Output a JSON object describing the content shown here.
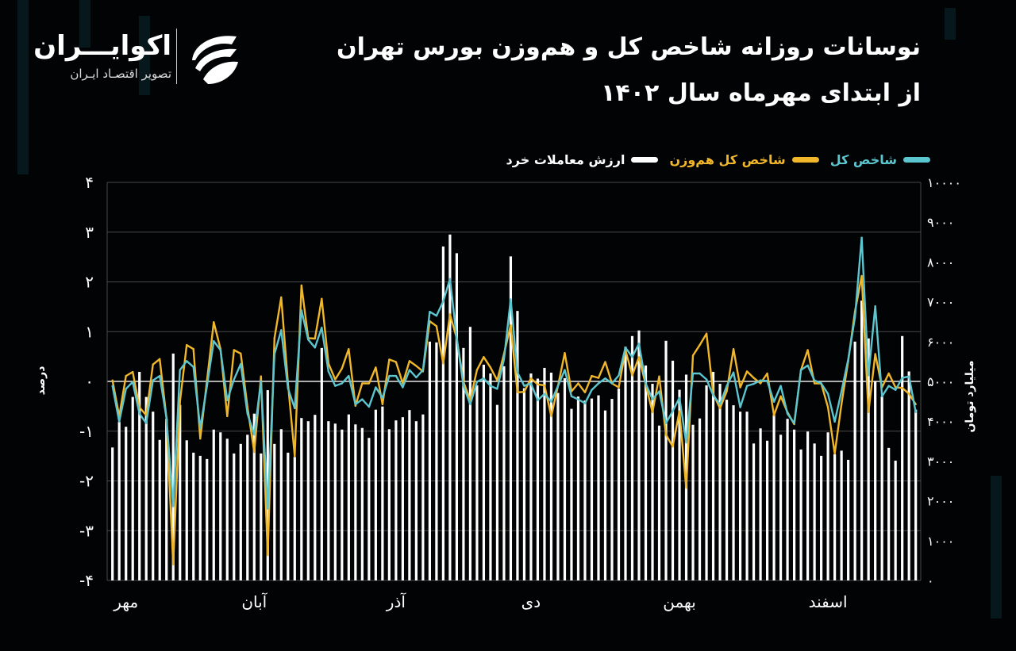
{
  "header": {
    "title_line1": "نوسانات روزانه شاخص کل و هم‌وزن بورس تهران",
    "title_line2": "از ابتدای مهرماه سال ۱۴۰۲"
  },
  "logo": {
    "name": "اکوایـــران",
    "tagline": "تصویر اقتصـاد ایـران",
    "icon": "ekoiran-swoosh-icon"
  },
  "colors": {
    "background": "#020304",
    "total_index": "#5cc6d0",
    "equal_weight_index": "#f0b72a",
    "retail_value": "#ffffff",
    "grid": "#4a4a4a"
  },
  "chart_data": {
    "type": "bar+line",
    "title": "نوسانات روزانه شاخص کل و هم‌وزن بورس تهران از ابتدای مهرماه سال ۱۴۰۲",
    "legend": {
      "placement": "top-right",
      "items": [
        {
          "label": "شاخص کل",
          "series": "total_index"
        },
        {
          "label": "شاخص کل هم‌وزن",
          "series": "equal_weight_index"
        },
        {
          "label": "ارزش معاملات خرد",
          "series": "retail_value"
        }
      ]
    },
    "y_left": {
      "label": "درصد",
      "range": [
        -4,
        4
      ],
      "ticks": [
        "۴",
        "۳",
        "۲",
        "۱",
        "۰",
        "-۱",
        "-۲",
        "-۳",
        "-۴"
      ],
      "tick_values": [
        4,
        3,
        2,
        1,
        0,
        -1,
        -2,
        -3,
        -4
      ]
    },
    "y_right": {
      "label": "میلیارد تومان",
      "range": [
        0,
        10000
      ],
      "ticks": [
        "۱۰۰۰۰",
        "۹۰۰۰",
        "۸۰۰۰",
        "۷۰۰۰",
        "۶۰۰۰",
        "۵۰۰۰",
        "۴۰۰۰",
        "۳۰۰۰",
        "۲۰۰۰",
        "۱۰۰۰",
        "۰"
      ],
      "tick_values": [
        10000,
        9000,
        8000,
        7000,
        6000,
        5000,
        4000,
        3000,
        2000,
        1000,
        0
      ]
    },
    "grid": true,
    "x_ticks": [
      {
        "label": "مهر",
        "index": 3
      },
      {
        "label": "آبان",
        "index": 22
      },
      {
        "label": "آذر",
        "index": 43
      },
      {
        "label": "دی",
        "index": 63
      },
      {
        "label": "بهمن",
        "index": 85
      },
      {
        "label": "اسفند",
        "index": 107
      }
    ],
    "series": [
      {
        "name": "ارزش معاملات خرد",
        "key": "retail_value",
        "type": "bar",
        "axis": "right",
        "values": [
          3340,
          3990,
          3860,
          4610,
          5240,
          4610,
          4240,
          3530,
          4060,
          5700,
          4410,
          3520,
          3210,
          3130,
          3050,
          3790,
          3720,
          3560,
          3190,
          3430,
          3660,
          4190,
          3190,
          4780,
          3430,
          3800,
          3210,
          3100,
          4080,
          4000,
          4160,
          5840,
          4000,
          3940,
          3790,
          4170,
          3920,
          3830,
          3580,
          4290,
          4370,
          3800,
          4020,
          4100,
          4280,
          4000,
          4170,
          6000,
          5980,
          8390,
          8690,
          8220,
          5840,
          6370,
          4900,
          5420,
          5200,
          4410,
          5380,
          8140,
          6770,
          4830,
          5200,
          5070,
          5340,
          5220,
          4710,
          5080,
          4310,
          4620,
          4520,
          4570,
          4650,
          4270,
          4560,
          4820,
          5870,
          6140,
          6280,
          5400,
          4940,
          3890,
          6020,
          5520,
          4790,
          5170,
          3910,
          4070,
          4900,
          5240,
          4940,
          4540,
          4400,
          4240,
          4240,
          3440,
          3820,
          3510,
          4160,
          3660,
          4060,
          3790,
          3290,
          3740,
          3440,
          3130,
          3720,
          3170,
          3260,
          3030,
          6000,
          7030,
          6080,
          5000,
          4620,
          3330,
          3010,
          6140,
          5250,
          4290
        ]
      },
      {
        "name": "شاخص کل هم‌وزن",
        "key": "equal_weight_index",
        "type": "line",
        "axis": "left",
        "values": [
          0.02,
          -0.7,
          0.11,
          0.19,
          -0.52,
          -0.68,
          0.34,
          0.45,
          -0.73,
          -3.68,
          -0.41,
          0.73,
          0.65,
          -1.15,
          0.02,
          1.19,
          0.65,
          -0.7,
          0.63,
          0.56,
          -0.52,
          -1.42,
          0.1,
          -3.49,
          0.87,
          1.69,
          -0.04,
          -1.5,
          1.93,
          0.87,
          0.86,
          1.66,
          0.36,
          0.04,
          0.26,
          0.65,
          -0.49,
          -0.04,
          -0.04,
          0.28,
          -0.46,
          0.44,
          0.39,
          -0.04,
          0.41,
          0.31,
          0.2,
          1.21,
          1.11,
          0.36,
          1.35,
          0.87,
          -0.01,
          -0.38,
          0.23,
          0.49,
          0.28,
          0.02,
          0.55,
          1.13,
          -0.22,
          -0.21,
          0.06,
          -0.06,
          -0.08,
          -0.7,
          -0.09,
          0.57,
          -0.2,
          -0.04,
          -0.22,
          0.11,
          0.07,
          0.39,
          -0.04,
          -0.12,
          0.63,
          0.12,
          0.49,
          -0.06,
          -0.62,
          0.1,
          -1.07,
          -1.31,
          -0.6,
          -2.14,
          0.52,
          0.73,
          0.96,
          -0.25,
          -0.54,
          -0.2,
          0.65,
          -0.12,
          0.2,
          0.07,
          -0.04,
          0.16,
          -0.68,
          -0.3,
          -0.62,
          -0.86,
          0.23,
          0.63,
          -0.04,
          -0.04,
          -0.52,
          -1.45,
          -0.46,
          0.41,
          1.4,
          2.12,
          -0.62,
          0.55,
          -0.12,
          0.16,
          -0.12,
          -0.13,
          -0.25,
          -0.46
        ]
      },
      {
        "name": "شاخص کل",
        "key": "total_index",
        "type": "line",
        "axis": "left",
        "values": [
          -0.09,
          -0.81,
          -0.15,
          -0.01,
          -0.65,
          -0.84,
          0.02,
          0.11,
          -0.73,
          -2.51,
          0.23,
          0.41,
          0.29,
          -0.94,
          -0.09,
          0.81,
          0.63,
          -0.38,
          0.04,
          0.35,
          -0.65,
          -1.07,
          0.0,
          -2.56,
          0.55,
          1.03,
          -0.14,
          -0.54,
          1.43,
          0.84,
          0.68,
          1.08,
          0.2,
          -0.09,
          -0.04,
          0.11,
          -0.46,
          -0.36,
          -0.51,
          -0.12,
          -0.33,
          0.11,
          0.11,
          -0.12,
          0.23,
          0.08,
          0.23,
          1.4,
          1.32,
          1.61,
          2.06,
          0.87,
          -0.09,
          -0.46,
          -0.01,
          0.06,
          -0.09,
          -0.15,
          0.44,
          1.65,
          0.18,
          -0.09,
          -0.04,
          -0.38,
          -0.25,
          -0.41,
          -0.09,
          0.23,
          -0.3,
          -0.36,
          -0.44,
          -0.17,
          -0.04,
          0.06,
          -0.04,
          0.12,
          0.68,
          0.49,
          0.76,
          -0.04,
          -0.36,
          -0.2,
          -0.84,
          -0.6,
          -0.33,
          -1.23,
          0.16,
          0.16,
          0.04,
          -0.28,
          -0.46,
          -0.09,
          0.18,
          -0.52,
          -0.09,
          -0.05,
          0.02,
          0.01,
          -0.41,
          -0.09,
          -0.65,
          -0.84,
          0.23,
          0.32,
          0.02,
          -0.04,
          -0.25,
          -0.81,
          -0.2,
          0.44,
          1.29,
          2.89,
          0.12,
          1.51,
          -0.3,
          -0.09,
          -0.17,
          0.07,
          0.1,
          -0.62
        ]
      }
    ]
  }
}
